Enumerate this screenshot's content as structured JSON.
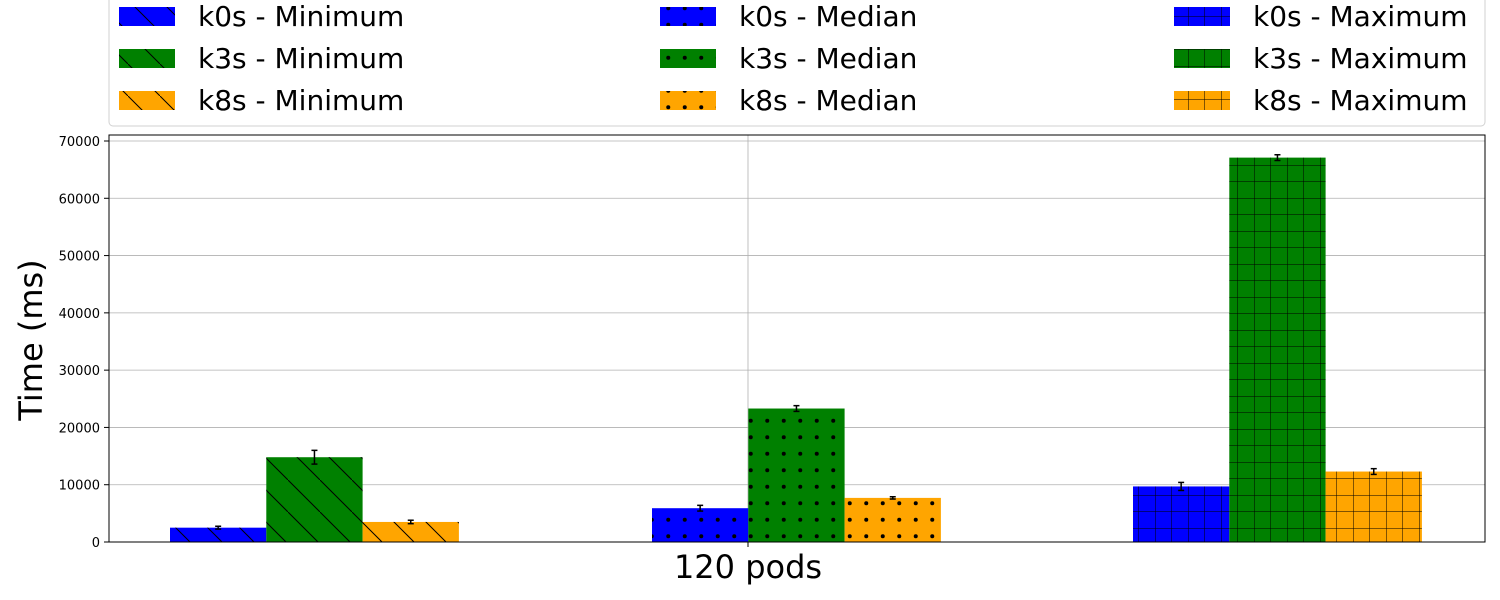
{
  "chart_data": {
    "type": "bar",
    "title": "",
    "xlabel": "120 pods",
    "ylabel": "Time (ms)",
    "ylim": [
      0,
      70000
    ],
    "yticks": [
      0,
      10000,
      20000,
      30000,
      40000,
      50000,
      60000,
      70000
    ],
    "grid": true,
    "legend_position": "top",
    "groups": [
      {
        "name": "Minimum",
        "pattern": "diagonal",
        "bars": [
          {
            "series": "k0s - Minimum",
            "color": "#0000ff",
            "value": 2500,
            "error": 250
          },
          {
            "series": "k3s - Minimum",
            "color": "#008000",
            "value": 14800,
            "error": 1200
          },
          {
            "series": "k8s - Minimum",
            "color": "#ffa500",
            "value": 3500,
            "error": 300
          }
        ]
      },
      {
        "name": "Median",
        "pattern": "dots",
        "bars": [
          {
            "series": "k0s - Median",
            "color": "#0000ff",
            "value": 5900,
            "error": 500
          },
          {
            "series": "k3s - Median",
            "color": "#008000",
            "value": 23300,
            "error": 500
          },
          {
            "series": "k8s - Median",
            "color": "#ffa500",
            "value": 7700,
            "error": 200
          }
        ]
      },
      {
        "name": "Maximum",
        "pattern": "grid",
        "bars": [
          {
            "series": "k0s - Maximum",
            "color": "#0000ff",
            "value": 9700,
            "error": 700
          },
          {
            "series": "k3s - Maximum",
            "color": "#008000",
            "value": 67100,
            "error": 500
          },
          {
            "series": "k8s - Maximum",
            "color": "#ffa500",
            "value": 12300,
            "error": 500
          }
        ]
      }
    ]
  }
}
